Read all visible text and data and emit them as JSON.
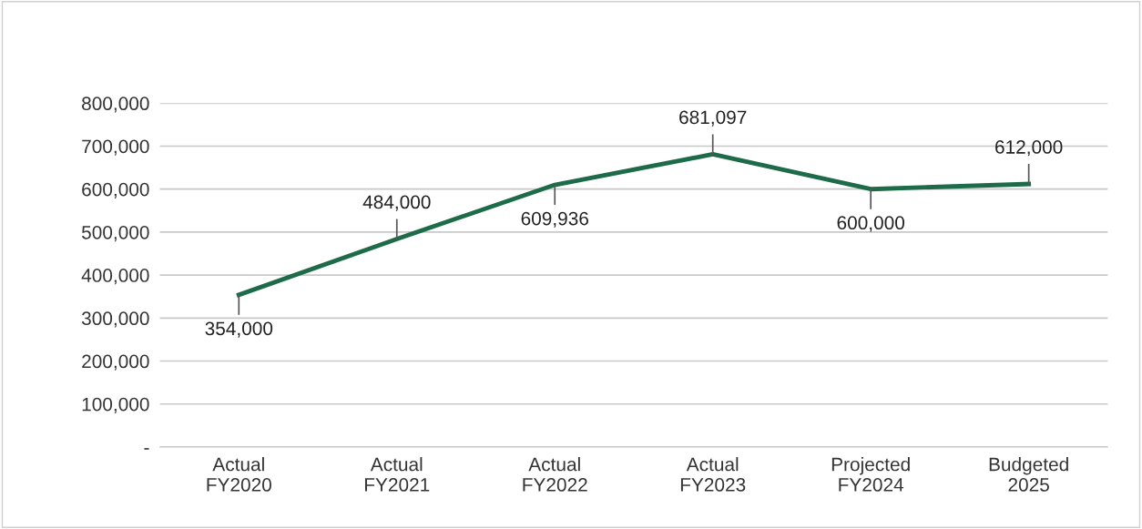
{
  "chart_data": {
    "type": "line",
    "categories": [
      "Actual\nFY2020",
      "Actual\nFY2021",
      "Actual\nFY2022",
      "Actual\nFY2023",
      "Projected\nFY2024",
      "Budgeted\n2025"
    ],
    "series": [
      {
        "color": "#1e6b4a",
        "values": [
          354000,
          484000,
          609936,
          681097,
          600000,
          612000
        ],
        "value_labels": [
          "354,000",
          "484,000",
          "609,936",
          "681,097",
          "600,000",
          "612,000"
        ]
      }
    ],
    "ylim": [
      0,
      800000
    ],
    "yticks": [
      {
        "value": 0,
        "label": "-"
      },
      {
        "value": 100000,
        "label": "100,000"
      },
      {
        "value": 200000,
        "label": "200,000"
      },
      {
        "value": 300000,
        "label": "300,000"
      },
      {
        "value": 400000,
        "label": "400,000"
      },
      {
        "value": 500000,
        "label": "500,000"
      },
      {
        "value": 600000,
        "label": "600,000"
      },
      {
        "value": 700000,
        "label": "700,000"
      },
      {
        "value": 800000,
        "label": "800,000"
      }
    ],
    "grid": "y",
    "marker": "none",
    "line_style": "solid",
    "legend": false
  }
}
